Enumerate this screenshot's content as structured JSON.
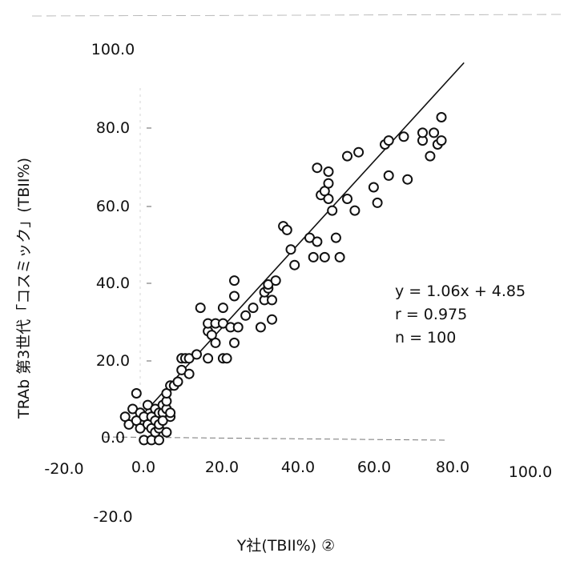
{
  "chart_data": {
    "type": "scatter",
    "title": "",
    "xlabel": "Y社(TBII%) ②",
    "ylabel": "TRAb 第3世代「コスミック」(TBII%)",
    "xlim": [
      -20,
      100
    ],
    "ylim": [
      -20,
      100
    ],
    "x_ticks": [
      "-20.0",
      "0.0",
      "20.0",
      "40.0",
      "60.0",
      "80.0",
      "100.0"
    ],
    "y_ticks": [
      "100.0",
      "80.0",
      "60.0",
      "40.0",
      "20.0",
      "0.0",
      "-20.0"
    ],
    "grid": false,
    "series": [
      {
        "marker": "open-circle",
        "points": [
          [
            -4,
            5
          ],
          [
            -3,
            3
          ],
          [
            -2,
            7
          ],
          [
            -1,
            11
          ],
          [
            -1,
            4
          ],
          [
            0,
            6
          ],
          [
            0,
            2
          ],
          [
            1,
            5
          ],
          [
            1,
            -1
          ],
          [
            2,
            3
          ],
          [
            2,
            8
          ],
          [
            3,
            5
          ],
          [
            3,
            2
          ],
          [
            3,
            -1
          ],
          [
            4,
            4
          ],
          [
            4,
            7
          ],
          [
            4,
            1
          ],
          [
            5,
            6
          ],
          [
            5,
            2
          ],
          [
            5,
            3
          ],
          [
            5,
            -1
          ],
          [
            6,
            6
          ],
          [
            6,
            4
          ],
          [
            6,
            8
          ],
          [
            7,
            7
          ],
          [
            7,
            9
          ],
          [
            7,
            11
          ],
          [
            7,
            1
          ],
          [
            8,
            5
          ],
          [
            8,
            6
          ],
          [
            8,
            13
          ],
          [
            9,
            13
          ],
          [
            10,
            14
          ],
          [
            11,
            17
          ],
          [
            11,
            20
          ],
          [
            12,
            20
          ],
          [
            13,
            16
          ],
          [
            13,
            20
          ],
          [
            15,
            21
          ],
          [
            16,
            33
          ],
          [
            18,
            27
          ],
          [
            18,
            29
          ],
          [
            18,
            20
          ],
          [
            19,
            26
          ],
          [
            20,
            29
          ],
          [
            20,
            24
          ],
          [
            22,
            29
          ],
          [
            22,
            33
          ],
          [
            22,
            20
          ],
          [
            23,
            20
          ],
          [
            24,
            28
          ],
          [
            25,
            40
          ],
          [
            25,
            36
          ],
          [
            25,
            24
          ],
          [
            26,
            28
          ],
          [
            28,
            31
          ],
          [
            30,
            33
          ],
          [
            32,
            28
          ],
          [
            33,
            35
          ],
          [
            33,
            37
          ],
          [
            34,
            38
          ],
          [
            34,
            39
          ],
          [
            35,
            30
          ],
          [
            35,
            35
          ],
          [
            36,
            40
          ],
          [
            38,
            54
          ],
          [
            39,
            53
          ],
          [
            40,
            48
          ],
          [
            41,
            44
          ],
          [
            45,
            51
          ],
          [
            46,
            46
          ],
          [
            47,
            50
          ],
          [
            47,
            69
          ],
          [
            48,
            62
          ],
          [
            49,
            46
          ],
          [
            49,
            63
          ],
          [
            50,
            61
          ],
          [
            50,
            68
          ],
          [
            50,
            65
          ],
          [
            51,
            58
          ],
          [
            52,
            51
          ],
          [
            53,
            46
          ],
          [
            55,
            72
          ],
          [
            55,
            61
          ],
          [
            57,
            58
          ],
          [
            58,
            73
          ],
          [
            62,
            64
          ],
          [
            63,
            60
          ],
          [
            65,
            75
          ],
          [
            66,
            76
          ],
          [
            66,
            67
          ],
          [
            70,
            77
          ],
          [
            71,
            66
          ],
          [
            75,
            76
          ],
          [
            75,
            78
          ],
          [
            77,
            72
          ],
          [
            78,
            78
          ],
          [
            79,
            75
          ],
          [
            80,
            76
          ],
          [
            80,
            82
          ]
        ]
      }
    ],
    "fit_line": {
      "slope": 1.06,
      "intercept": 4.85,
      "x_range": [
        -1.7,
        86
      ]
    },
    "annotations": [
      "y = 1.06x + 4.85",
      "r = 0.975",
      "n = 100"
    ]
  }
}
